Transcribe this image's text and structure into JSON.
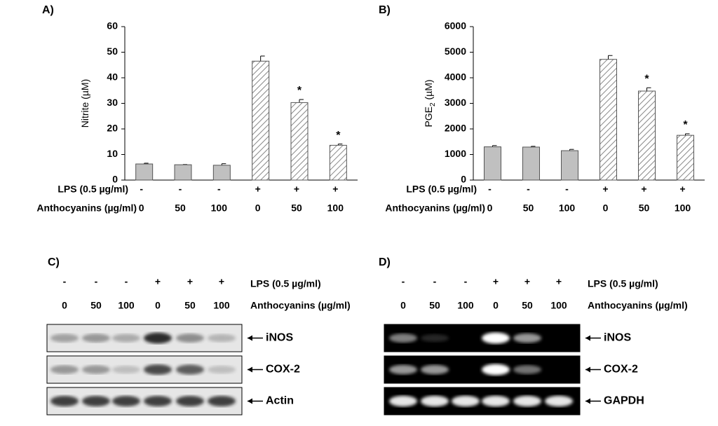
{
  "chart_data": [
    {
      "type": "bar",
      "panel": "A)",
      "ylabel": "Nitrite (µM)",
      "values": [
        6.3,
        6.0,
        5.8,
        46.5,
        30.3,
        13.6
      ],
      "errors": [
        0.3,
        0.1,
        0.6,
        2.0,
        1.2,
        0.5
      ],
      "hatched": [
        false,
        false,
        false,
        true,
        true,
        true
      ],
      "color": "#c0c0c0",
      "annotations": [
        null,
        null,
        null,
        null,
        "*",
        "*"
      ],
      "ylim": [
        0,
        60
      ],
      "yticks": [
        0,
        10,
        20,
        30,
        40,
        50,
        60
      ],
      "lps_label": "LPS (0.5 µg/ml)",
      "lps": [
        "-",
        "-",
        "-",
        "+",
        "+",
        "+"
      ],
      "anthocyanins_label": "Anthocyanins (µg/ml)",
      "anthocyanins": [
        "0",
        "50",
        "100",
        "0",
        "50",
        "100"
      ]
    },
    {
      "type": "bar",
      "panel": "B)",
      "ylabel": "PGE",
      "ylabel_sub": "2",
      "ylabel_end": " (µM)",
      "values": [
        1300,
        1290,
        1150,
        4720,
        3480,
        1750
      ],
      "errors": [
        50,
        30,
        50,
        150,
        130,
        60
      ],
      "hatched": [
        false,
        false,
        false,
        true,
        true,
        true
      ],
      "color": "#c0c0c0",
      "annotations": [
        null,
        null,
        null,
        null,
        "*",
        "*"
      ],
      "ylim": [
        0,
        6000
      ],
      "yticks": [
        0,
        1000,
        2000,
        3000,
        4000,
        5000,
        6000
      ],
      "lps_label": "LPS (0.5 µg/ml)",
      "lps": [
        "-",
        "-",
        "-",
        "+",
        "+",
        "+"
      ],
      "anthocyanins_label": "Anthocyanins (µg/ml)",
      "anthocyanins": [
        "0",
        "50",
        "100",
        "0",
        "50",
        "100"
      ]
    }
  ],
  "blots": [
    {
      "panel": "C)",
      "lps_label": "LPS (0.5 µg/ml)",
      "lps": [
        "-",
        "-",
        "-",
        "+",
        "+",
        "+"
      ],
      "anthocyanins_label": "Anthocyanins (µg/ml)",
      "anthocyanins": [
        "0",
        "50",
        "100",
        "0",
        "50",
        "100"
      ],
      "rows": [
        "iNOS",
        "COX-2",
        "Actin"
      ]
    },
    {
      "panel": "D)",
      "lps_label": "LPS (0.5 µg/ml)",
      "lps": [
        "-",
        "-",
        "-",
        "+",
        "+",
        "+"
      ],
      "anthocyanins_label": "Anthocyanins (µg/ml)",
      "anthocyanins": [
        "0",
        "50",
        "100",
        "0",
        "50",
        "100"
      ],
      "rows": [
        "iNOS",
        "COX-2",
        "GAPDH"
      ]
    }
  ]
}
